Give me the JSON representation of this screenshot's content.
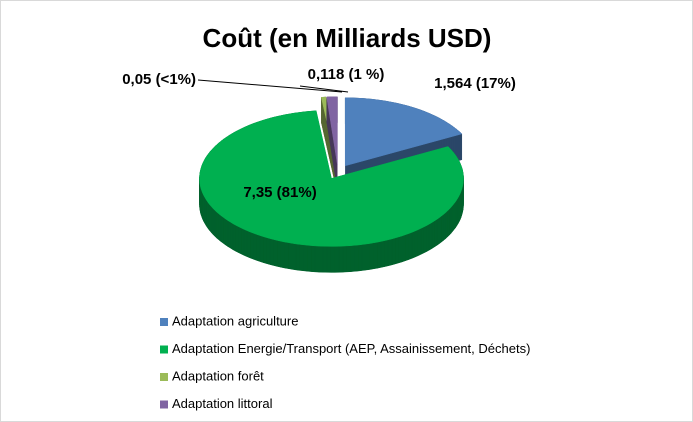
{
  "chart_data": {
    "type": "pie",
    "title": "Coût (en Milliards USD)",
    "categories": [
      "Adaptation agriculture",
      "Adaptation Energie/Transport (AEP, Assainissement, Déchets)",
      "Adaptation forêt",
      "Adaptation littoral"
    ],
    "values": [
      1.564,
      7.35,
      0.05,
      0.118
    ],
    "value_labels": [
      "1,564 (17%)",
      "7,35 (81%)",
      "0,05 (<1%)",
      "0,118 (1 %)"
    ],
    "colors": [
      "#4f81bd",
      "#00b050",
      "#9bbb59",
      "#8064a2"
    ],
    "legend": "bottom"
  }
}
